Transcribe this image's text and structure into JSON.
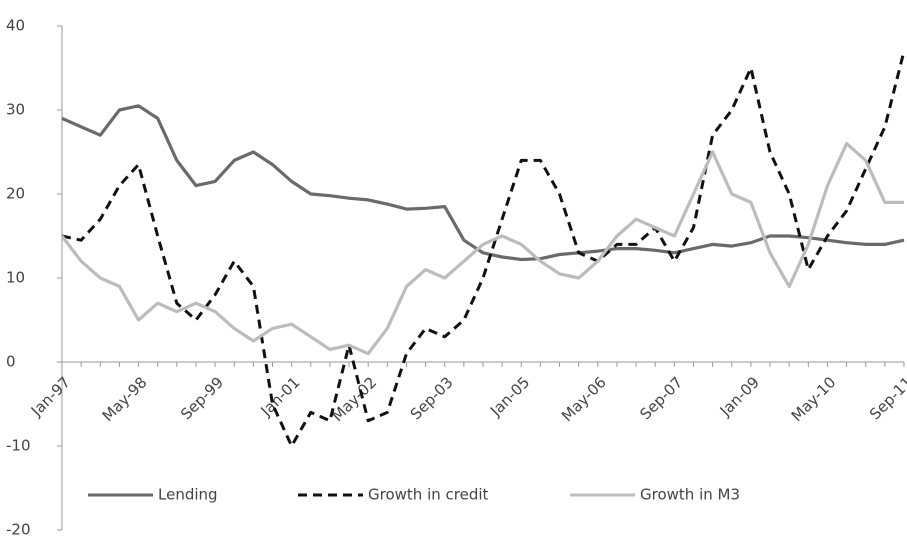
{
  "chart_data": {
    "type": "line",
    "categories": [
      "Jan-97",
      null,
      null,
      null,
      "May-98",
      null,
      null,
      null,
      "Sep-99",
      null,
      null,
      null,
      "Jan-01",
      null,
      null,
      null,
      "May-02",
      null,
      null,
      null,
      "Sep-03",
      null,
      null,
      null,
      "Jan-05",
      null,
      null,
      null,
      "May-06",
      null,
      null,
      null,
      "Sep-07",
      null,
      null,
      null,
      "Jan-09",
      null,
      null,
      null,
      "May-10",
      null,
      null,
      null,
      "Sep-11"
    ],
    "series": [
      {
        "name": "Lending",
        "color": "#6a6a6a",
        "style": "solid",
        "values": [
          29,
          28,
          27,
          30,
          30.5,
          29,
          24,
          21,
          21.5,
          24,
          25,
          23.5,
          21.5,
          20,
          19.8,
          19.5,
          19.3,
          18.8,
          18.2,
          18.3,
          18.5,
          14.5,
          13,
          12.5,
          12.2,
          12.3,
          12.8,
          13,
          13.2,
          13.5,
          13.5,
          13.3,
          13,
          13.5,
          14,
          13.8,
          14.2,
          15,
          15,
          14.8,
          14.5,
          14.2,
          14,
          14,
          14.5
        ]
      },
      {
        "name": "Growth in credit",
        "color": "#111111",
        "style": "dashed",
        "values": [
          15,
          14.5,
          17,
          21,
          23.5,
          15,
          7,
          5,
          8,
          12,
          9,
          -5,
          -10,
          -6,
          -7,
          2,
          -7,
          -6,
          1,
          4,
          3,
          5,
          10,
          17,
          24,
          24,
          20,
          13,
          12,
          14,
          14,
          16,
          12,
          16,
          27,
          30,
          35,
          25,
          20,
          11,
          15,
          18,
          23,
          28,
          37
        ]
      },
      {
        "name": "Growth in M3",
        "color": "#bcbcbc",
        "style": "solid",
        "values": [
          15,
          12,
          10,
          9,
          5,
          7,
          6,
          7,
          6,
          4,
          2.5,
          4,
          4.5,
          3,
          1.5,
          2,
          1,
          4,
          9,
          11,
          10,
          12,
          14,
          15,
          14,
          12,
          10.5,
          10,
          12,
          15,
          17,
          16,
          15,
          20,
          25,
          20,
          19,
          13,
          9,
          14,
          21,
          26,
          24,
          19,
          19
        ]
      }
    ],
    "ylim": [
      -20,
      40
    ],
    "yticks": [
      -20,
      -10,
      0,
      10,
      20,
      30,
      40
    ],
    "legend": "bottom"
  }
}
